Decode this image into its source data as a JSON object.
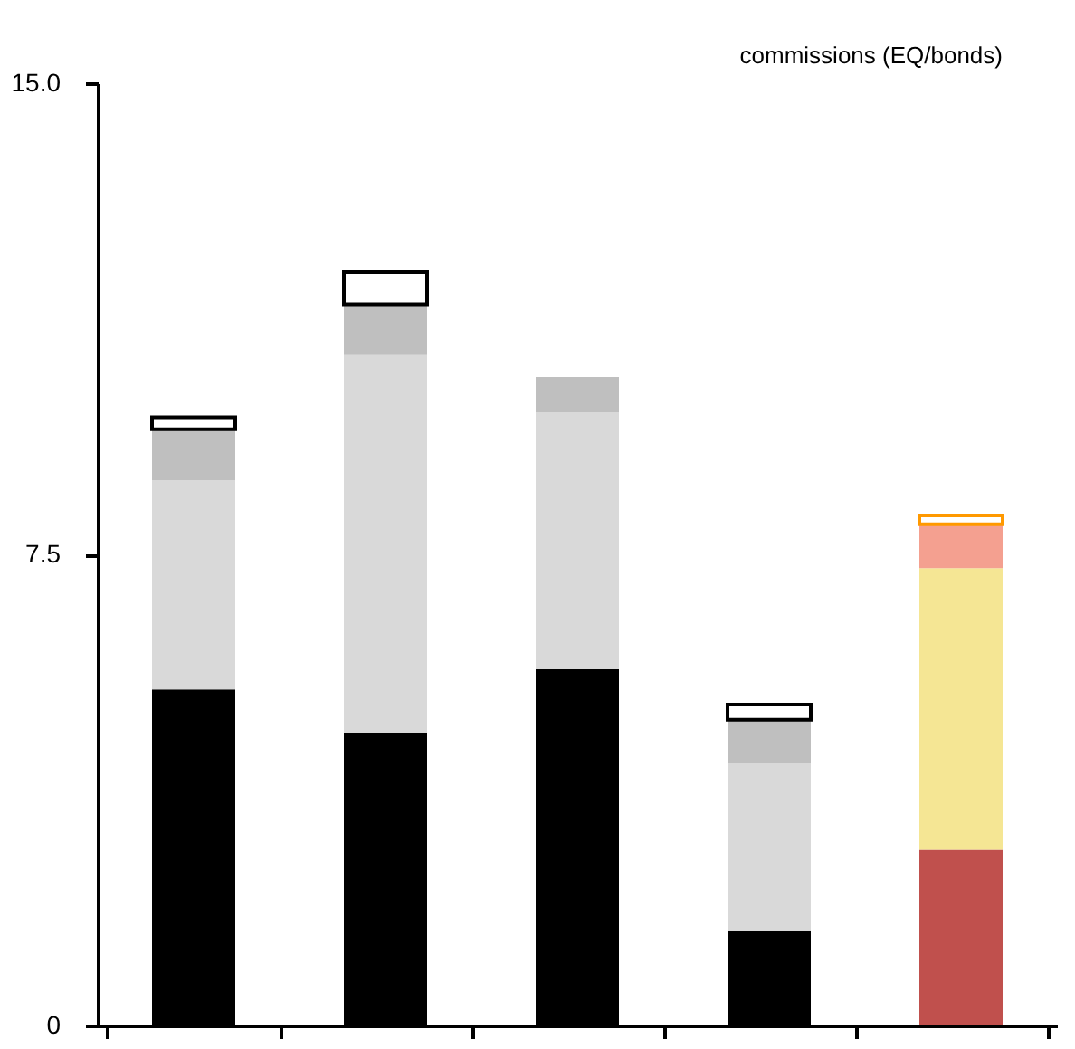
{
  "chart_data": {
    "type": "bar",
    "stacked": true,
    "categories": [
      null,
      null,
      null,
      null,
      null
    ],
    "series": [
      {
        "colors": [
          "#000000",
          "#000000",
          "#000000",
          "#000000",
          "#c0504d"
        ],
        "values": [
          5.35,
          4.65,
          5.67,
          1.5,
          2.8
        ]
      },
      {
        "colors": [
          "#d9d9d9",
          "#d9d9d9",
          "#d9d9d9",
          "#d9d9d9",
          "#f5e694"
        ],
        "values": [
          3.33,
          6.02,
          4.09,
          2.67,
          4.48
        ]
      },
      {
        "colors": [
          "#bfbfbf",
          "#bfbfbf",
          "#bfbfbf",
          "#bfbfbf",
          "#f4a090"
        ],
        "values": [
          0.81,
          0.81,
          0.56,
          0.7,
          0.7
        ]
      },
      {
        "colors": [
          "#000000",
          "#000000",
          "#000000",
          "#000000",
          "#ff9900"
        ],
        "values": [
          0.19,
          0.51,
          null,
          0.24,
          0.14
        ]
      }
    ],
    "ylim": [
      0,
      15
    ],
    "yticks": [
      {
        "value": 0,
        "label": "0"
      },
      {
        "value": 7.5,
        "label": "7.5"
      },
      {
        "value": 15,
        "label": "15.0"
      }
    ],
    "tick_labels": "y",
    "grid": false,
    "annotations": [
      "commissions (EQ/bonds)"
    ]
  }
}
